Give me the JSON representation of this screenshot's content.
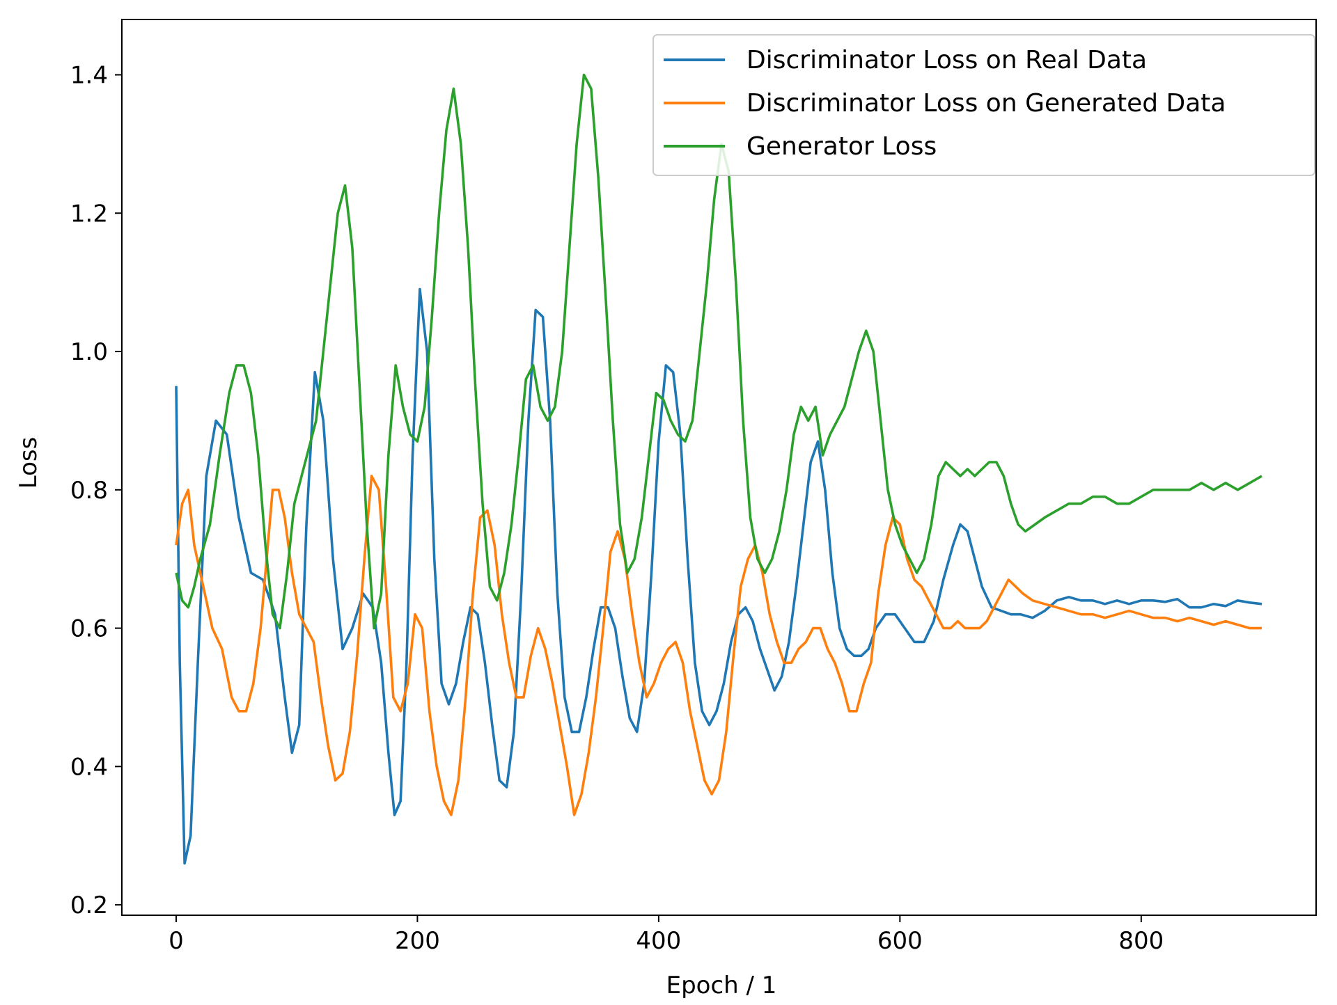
{
  "chart_data": {
    "type": "line",
    "title": "",
    "xlabel": "Epoch / 1",
    "ylabel": "Loss",
    "xlim": [
      -45,
      945
    ],
    "ylim": [
      0.185,
      1.48
    ],
    "xticks": [
      0,
      200,
      400,
      600,
      800
    ],
    "yticks": [
      0.2,
      0.4,
      0.6,
      0.8,
      1.0,
      1.2,
      1.4
    ],
    "xtick_labels": [
      "0",
      "200",
      "400",
      "600",
      "800"
    ],
    "ytick_labels": [
      "0.2",
      "0.4",
      "0.6",
      "0.8",
      "1.0",
      "1.2",
      "1.4"
    ],
    "grid": false,
    "legend_position": "top-right",
    "series": [
      {
        "name": "Discriminator Loss on Real Data",
        "color": "#1f77b4",
        "x": [
          0,
          3,
          7,
          12,
          18,
          25,
          33,
          42,
          52,
          62,
          72,
          82,
          90,
          96,
          102,
          108,
          115,
          122,
          130,
          138,
          146,
          155,
          163,
          170,
          176,
          181,
          186,
          191,
          196,
          202,
          208,
          214,
          220,
          226,
          232,
          238,
          244,
          250,
          256,
          262,
          268,
          274,
          280,
          286,
          292,
          298,
          304,
          310,
          316,
          322,
          328,
          334,
          340,
          346,
          352,
          358,
          364,
          370,
          376,
          382,
          388,
          394,
          400,
          406,
          412,
          418,
          424,
          430,
          436,
          442,
          448,
          454,
          460,
          466,
          472,
          478,
          484,
          490,
          496,
          502,
          508,
          514,
          520,
          526,
          532,
          538,
          544,
          550,
          556,
          562,
          568,
          574,
          580,
          588,
          596,
          604,
          612,
          620,
          628,
          636,
          644,
          650,
          656,
          662,
          668,
          676,
          684,
          692,
          700,
          710,
          720,
          730,
          740,
          750,
          760,
          770,
          780,
          790,
          800,
          810,
          820,
          830,
          840,
          850,
          860,
          870,
          880,
          890,
          900
        ],
        "y": [
          0.95,
          0.55,
          0.26,
          0.3,
          0.55,
          0.82,
          0.9,
          0.88,
          0.76,
          0.68,
          0.67,
          0.62,
          0.5,
          0.42,
          0.46,
          0.75,
          0.97,
          0.9,
          0.7,
          0.57,
          0.6,
          0.65,
          0.63,
          0.55,
          0.42,
          0.33,
          0.35,
          0.55,
          0.85,
          1.09,
          1.0,
          0.7,
          0.52,
          0.49,
          0.52,
          0.58,
          0.63,
          0.62,
          0.55,
          0.46,
          0.38,
          0.37,
          0.45,
          0.65,
          0.9,
          1.06,
          1.05,
          0.9,
          0.65,
          0.5,
          0.45,
          0.45,
          0.5,
          0.57,
          0.63,
          0.63,
          0.6,
          0.53,
          0.47,
          0.45,
          0.52,
          0.68,
          0.87,
          0.98,
          0.97,
          0.88,
          0.7,
          0.55,
          0.48,
          0.46,
          0.48,
          0.52,
          0.58,
          0.62,
          0.63,
          0.61,
          0.57,
          0.54,
          0.51,
          0.53,
          0.58,
          0.66,
          0.75,
          0.84,
          0.87,
          0.8,
          0.68,
          0.6,
          0.57,
          0.56,
          0.56,
          0.57,
          0.6,
          0.62,
          0.62,
          0.6,
          0.58,
          0.58,
          0.61,
          0.67,
          0.72,
          0.75,
          0.74,
          0.7,
          0.66,
          0.63,
          0.625,
          0.62,
          0.62,
          0.615,
          0.625,
          0.64,
          0.645,
          0.64,
          0.64,
          0.635,
          0.64,
          0.635,
          0.64,
          0.64,
          0.638,
          0.642,
          0.63,
          0.63,
          0.635,
          0.632,
          0.64,
          0.637,
          0.635
        ]
      },
      {
        "name": "Discriminator Loss on Generated Data",
        "color": "#ff7f0e",
        "x": [
          0,
          5,
          10,
          15,
          20,
          25,
          30,
          38,
          46,
          52,
          58,
          64,
          70,
          76,
          80,
          85,
          90,
          96,
          102,
          108,
          114,
          120,
          126,
          132,
          138,
          144,
          150,
          156,
          162,
          168,
          174,
          180,
          186,
          192,
          198,
          204,
          210,
          216,
          222,
          228,
          234,
          240,
          246,
          252,
          258,
          264,
          270,
          276,
          282,
          288,
          294,
          300,
          306,
          312,
          318,
          324,
          330,
          336,
          342,
          348,
          354,
          360,
          366,
          372,
          378,
          384,
          390,
          396,
          402,
          408,
          414,
          420,
          426,
          432,
          438,
          444,
          450,
          456,
          462,
          468,
          474,
          480,
          486,
          492,
          498,
          504,
          510,
          516,
          522,
          528,
          534,
          540,
          546,
          552,
          558,
          564,
          570,
          576,
          582,
          588,
          594,
          600,
          606,
          612,
          618,
          624,
          630,
          636,
          642,
          648,
          654,
          660,
          666,
          672,
          678,
          684,
          690,
          696,
          702,
          710,
          720,
          730,
          740,
          750,
          760,
          770,
          780,
          790,
          800,
          810,
          820,
          830,
          840,
          850,
          860,
          870,
          880,
          890,
          900
        ],
        "y": [
          0.72,
          0.78,
          0.8,
          0.72,
          0.68,
          0.64,
          0.6,
          0.57,
          0.5,
          0.48,
          0.48,
          0.52,
          0.6,
          0.72,
          0.8,
          0.8,
          0.76,
          0.68,
          0.62,
          0.6,
          0.58,
          0.5,
          0.43,
          0.38,
          0.39,
          0.45,
          0.56,
          0.7,
          0.82,
          0.8,
          0.66,
          0.5,
          0.48,
          0.52,
          0.62,
          0.6,
          0.48,
          0.4,
          0.35,
          0.33,
          0.38,
          0.5,
          0.65,
          0.76,
          0.77,
          0.72,
          0.62,
          0.55,
          0.5,
          0.5,
          0.56,
          0.6,
          0.57,
          0.52,
          0.46,
          0.4,
          0.33,
          0.36,
          0.42,
          0.5,
          0.6,
          0.71,
          0.74,
          0.7,
          0.62,
          0.55,
          0.5,
          0.52,
          0.55,
          0.57,
          0.58,
          0.55,
          0.48,
          0.43,
          0.38,
          0.36,
          0.38,
          0.45,
          0.56,
          0.66,
          0.7,
          0.72,
          0.68,
          0.62,
          0.58,
          0.55,
          0.55,
          0.57,
          0.58,
          0.6,
          0.6,
          0.57,
          0.55,
          0.52,
          0.48,
          0.48,
          0.52,
          0.55,
          0.65,
          0.72,
          0.76,
          0.75,
          0.7,
          0.67,
          0.66,
          0.64,
          0.62,
          0.6,
          0.6,
          0.61,
          0.6,
          0.6,
          0.6,
          0.61,
          0.63,
          0.65,
          0.67,
          0.66,
          0.65,
          0.64,
          0.635,
          0.63,
          0.625,
          0.62,
          0.62,
          0.615,
          0.62,
          0.625,
          0.62,
          0.615,
          0.615,
          0.61,
          0.615,
          0.61,
          0.605,
          0.61,
          0.605,
          0.6,
          0.6
        ]
      },
      {
        "name": "Generator Loss",
        "color": "#2ca02c",
        "x": [
          0,
          5,
          10,
          15,
          20,
          28,
          36,
          44,
          50,
          56,
          62,
          68,
          74,
          80,
          86,
          92,
          98,
          104,
          110,
          116,
          122,
          128,
          134,
          140,
          146,
          152,
          158,
          164,
          170,
          176,
          182,
          188,
          194,
          200,
          206,
          212,
          218,
          224,
          230,
          236,
          242,
          248,
          254,
          260,
          266,
          272,
          278,
          284,
          290,
          296,
          302,
          308,
          314,
          320,
          326,
          332,
          338,
          344,
          350,
          356,
          362,
          368,
          374,
          380,
          386,
          392,
          398,
          404,
          410,
          416,
          422,
          428,
          434,
          440,
          446,
          452,
          458,
          464,
          470,
          476,
          482,
          488,
          494,
          500,
          506,
          512,
          518,
          524,
          530,
          536,
          542,
          548,
          554,
          560,
          566,
          572,
          578,
          584,
          590,
          596,
          602,
          608,
          614,
          620,
          626,
          632,
          638,
          644,
          650,
          656,
          662,
          668,
          674,
          680,
          686,
          692,
          698,
          704,
          712,
          720,
          730,
          740,
          750,
          760,
          770,
          780,
          790,
          800,
          810,
          820,
          830,
          840,
          850,
          860,
          870,
          880,
          890,
          900
        ],
        "y": [
          0.68,
          0.64,
          0.63,
          0.66,
          0.7,
          0.75,
          0.85,
          0.94,
          0.98,
          0.98,
          0.94,
          0.85,
          0.72,
          0.62,
          0.6,
          0.68,
          0.78,
          0.82,
          0.86,
          0.9,
          1.0,
          1.1,
          1.2,
          1.24,
          1.15,
          0.95,
          0.75,
          0.6,
          0.65,
          0.85,
          0.98,
          0.92,
          0.88,
          0.87,
          0.92,
          1.05,
          1.2,
          1.32,
          1.38,
          1.3,
          1.15,
          0.95,
          0.78,
          0.66,
          0.64,
          0.68,
          0.75,
          0.85,
          0.96,
          0.98,
          0.92,
          0.9,
          0.92,
          1.0,
          1.15,
          1.3,
          1.4,
          1.38,
          1.25,
          1.08,
          0.9,
          0.75,
          0.68,
          0.7,
          0.76,
          0.85,
          0.94,
          0.93,
          0.9,
          0.88,
          0.87,
          0.9,
          1.0,
          1.1,
          1.22,
          1.3,
          1.26,
          1.1,
          0.9,
          0.76,
          0.7,
          0.68,
          0.7,
          0.74,
          0.8,
          0.88,
          0.92,
          0.9,
          0.92,
          0.85,
          0.88,
          0.9,
          0.92,
          0.96,
          1.0,
          1.03,
          1.0,
          0.9,
          0.8,
          0.75,
          0.72,
          0.7,
          0.68,
          0.7,
          0.75,
          0.82,
          0.84,
          0.83,
          0.82,
          0.83,
          0.82,
          0.83,
          0.84,
          0.84,
          0.82,
          0.78,
          0.75,
          0.74,
          0.75,
          0.76,
          0.77,
          0.78,
          0.78,
          0.79,
          0.79,
          0.78,
          0.78,
          0.79,
          0.8,
          0.8,
          0.8,
          0.8,
          0.81,
          0.8,
          0.81,
          0.8,
          0.81,
          0.82
        ]
      }
    ]
  }
}
